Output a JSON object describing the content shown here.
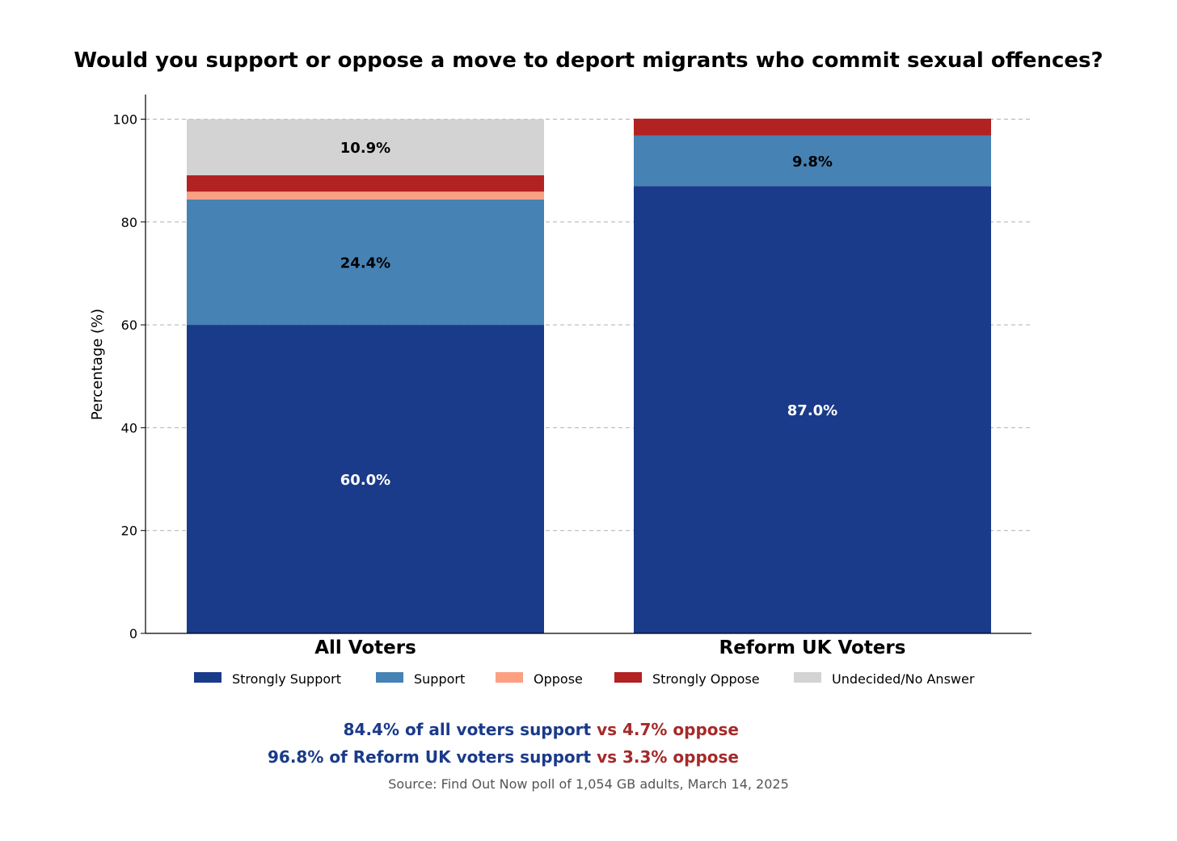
{
  "chart_data": {
    "type": "bar",
    "stacked": true,
    "title": "Would you support or oppose a move to deport migrants who commit sexual offences?",
    "ylabel": "Percentage (%)",
    "xlabel": "",
    "ylim": [
      0,
      105
    ],
    "yticks": [
      0,
      20,
      40,
      60,
      80,
      100
    ],
    "grid": true,
    "legend_position": "bottom",
    "categories": [
      "All Voters",
      "Reform UK Voters"
    ],
    "series": [
      {
        "name": "Strongly Support",
        "color": "#1a3a8a",
        "values": [
          60.0,
          87.0
        ],
        "labels": [
          "60.0%",
          "87.0%"
        ],
        "label_color": "#ffffff"
      },
      {
        "name": "Support",
        "color": "#4682b4",
        "values": [
          24.4,
          9.8
        ],
        "labels": [
          "24.4%",
          "9.8%"
        ],
        "label_color": "#000000"
      },
      {
        "name": "Oppose",
        "color": "#fca082",
        "values": [
          1.5,
          0.0
        ],
        "labels": [
          "",
          ""
        ],
        "label_color": "#000000"
      },
      {
        "name": "Strongly Oppose",
        "color": "#b22222",
        "values": [
          3.2,
          3.3
        ],
        "labels": [
          "",
          ""
        ],
        "label_color": "#000000"
      },
      {
        "name": "Undecided/No Answer",
        "color": "#d3d3d3",
        "values": [
          10.9,
          0.0
        ],
        "labels": [
          "10.9%",
          ""
        ],
        "label_color": "#000000"
      }
    ]
  },
  "summary": [
    {
      "support": "84.4% of all voters support",
      "oppose": " vs 4.7% oppose"
    },
    {
      "support": "96.8% of Reform UK voters support",
      "oppose": " vs 3.3% oppose"
    }
  ],
  "source": "Source: Find Out Now poll of 1,054 GB adults, March 14, 2025",
  "colors": {
    "support_text": "#1a3a8a",
    "oppose_text": "#a52a2a"
  }
}
